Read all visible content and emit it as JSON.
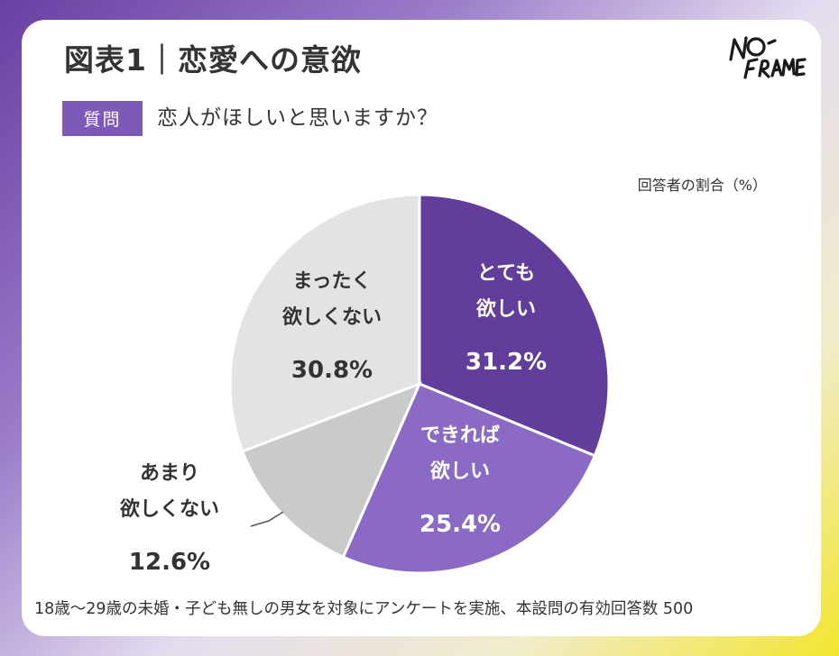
{
  "header": {
    "title": "図表1｜恋愛への意欲",
    "logo_text": "NO-FRAME",
    "question_badge": "質問",
    "question_text": "恋人がほしいと思いますか？"
  },
  "footnote": "18歳〜29歳の未婚・子ども無しの男女を対象にアンケートを実施、本設問の有効回答数 500",
  "chart_data": {
    "type": "pie",
    "title": "図表1｜恋愛への意欲",
    "unit_label": "回答者の割合（%）",
    "start": "12 o'clock, clockwise",
    "slices": [
      {
        "label_lines": [
          "とても",
          "欲しい"
        ],
        "value": 31.2,
        "value_text": "31.2%",
        "color": "#623e9c",
        "text_color": "#ffffff"
      },
      {
        "label_lines": [
          "できれば",
          "欲しい"
        ],
        "value": 25.4,
        "value_text": "25.4%",
        "color": "#8a6ac4",
        "text_color": "#ffffff"
      },
      {
        "label_lines": [
          "あまり",
          "欲しくない"
        ],
        "value": 12.6,
        "value_text": "12.6%",
        "color": "#c9cac9",
        "text_color": "#333333",
        "label_outside": true
      },
      {
        "label_lines": [
          "まったく",
          "欲しくない"
        ],
        "value": 30.8,
        "value_text": "30.8%",
        "color": "#e2e3e3",
        "text_color": "#333333"
      }
    ]
  }
}
